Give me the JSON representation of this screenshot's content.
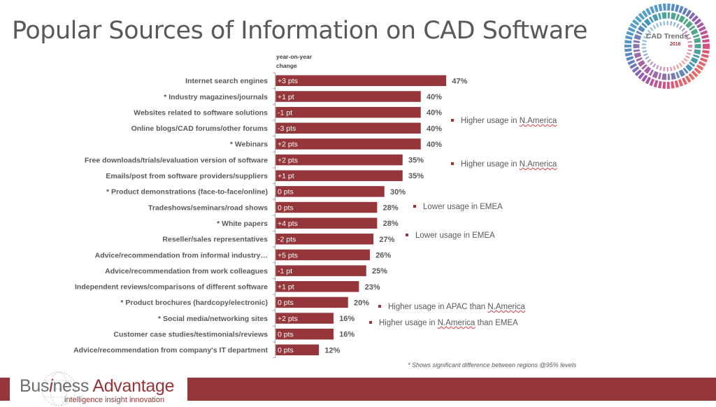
{
  "title": "Popular Sources of Information on CAD Software",
  "yoy_header": [
    "year-on-year",
    "change"
  ],
  "badge": {
    "title": "CAD Trends",
    "year": "2016"
  },
  "colors": {
    "bar": "#94363a",
    "accent": "#94363a",
    "text": "#595959"
  },
  "chart_data": {
    "type": "bar",
    "orientation": "horizontal",
    "title": "Popular Sources of Information on CAD Software",
    "xlabel": "",
    "ylabel": "",
    "xlim": [
      0,
      50
    ],
    "grid": false,
    "value_format": "percent",
    "categories": [
      "Internet search engines",
      "* Industry magazines/journals",
      "Websites related to software solutions",
      "Online blogs/CAD forums/other forums",
      "* Webinars",
      "Free downloads/trials/evaluation version of software",
      "Emails/post from software providers/suppliers",
      "* Product demonstrations (face-to-face/online)",
      "Tradeshows/seminars/road shows",
      "* White papers",
      "Reseller/sales representatives",
      "Advice/recommendation from informal industry…",
      "Advice/recommendation from work colleagues",
      "Independent reviews/comparisons of different software",
      "* Product brochures (hardcopy/electronic)",
      "* Social media/networking sites",
      "Customer case studies/testimonials/reviews",
      "Advice/recommendation from company's IT department"
    ],
    "values": [
      47,
      40,
      40,
      40,
      40,
      35,
      35,
      30,
      28,
      28,
      27,
      26,
      25,
      23,
      20,
      16,
      16,
      12
    ],
    "data_labels": [
      "47%",
      "40%",
      "40%",
      "40%",
      "40%",
      "35%",
      "35%",
      "30%",
      "28%",
      "28%",
      "27%",
      "26%",
      "25%",
      "23%",
      "20%",
      "16%",
      "16%",
      "12%"
    ],
    "yoy_change": [
      "+3 pts",
      "+1 pt",
      "-1 pt",
      "-3 pts",
      "+2 pts",
      "+2 pts",
      "+1 pt",
      "0 pts",
      "0 pts",
      "+4 pts",
      "-2 pts",
      "+5 pts",
      "-1 pt",
      "+1 pt",
      "0 pts",
      "+2 pts",
      "0 pts",
      "0 pts"
    ],
    "annotations": [
      {
        "text": "Higher usage in N.America",
        "near_category": "Online blogs/CAD forums/other forums"
      },
      {
        "text": "Higher usage in N.America",
        "near_category": "Free downloads/trials/evaluation version of software"
      },
      {
        "text": "Lower usage in EMEA",
        "near_category": "Tradeshows/seminars/road shows"
      },
      {
        "text": "Lower usage in EMEA",
        "near_category": "Reseller/sales representatives"
      },
      {
        "text": "Higher usage in APAC than N.America",
        "near_category": "* Product brochures (hardcopy/electronic)"
      },
      {
        "text": "Higher usage in N.America than EMEA",
        "near_category": "* Social media/networking sites"
      }
    ],
    "footnote": "* Shows significant difference between regions @95% levels"
  },
  "notes": [
    {
      "pre": "Higher usage in ",
      "wavy": "N.America",
      "post": ""
    },
    {
      "pre": "Higher usage in ",
      "wavy": "N.America",
      "post": ""
    },
    {
      "pre": "Lower usage in EMEA",
      "wavy": "",
      "post": ""
    },
    {
      "pre": "Lower usage in EMEA",
      "wavy": "",
      "post": ""
    },
    {
      "pre": "Higher usage in APAC than ",
      "wavy": "N.America",
      "post": ""
    },
    {
      "pre": "Higher usage in ",
      "wavy": "N.America",
      "post": " than EMEA"
    }
  ],
  "footnote": "* Shows significant difference between regions @95% levels",
  "footer": {
    "logo_part1": "Bus",
    "logo_i": "i",
    "logo_part2": "ness ",
    "logo_part3": "Advantage",
    "tagline": "intelligence insight innovation"
  }
}
